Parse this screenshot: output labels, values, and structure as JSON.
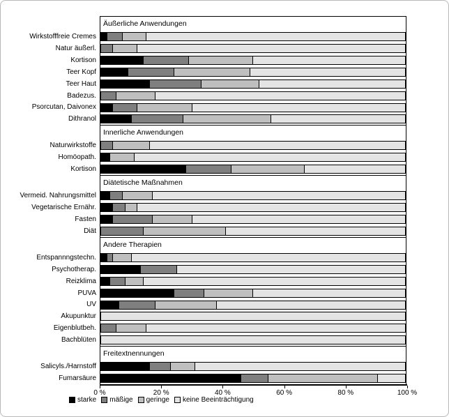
{
  "chart_data": {
    "type": "bar",
    "orientation": "horizontal",
    "stacked": true,
    "unit": "%",
    "x_axis": {
      "range": [
        0,
        100
      ],
      "ticks": [
        "0 %",
        "20 %",
        "40 %",
        "60 %",
        "80 %",
        "100 %"
      ]
    },
    "legend": {
      "position": "bottom",
      "entries": [
        {
          "key": "starke",
          "label": "starke",
          "color": "#000000"
        },
        {
          "key": "maessige",
          "label": "mäßige",
          "color": "#7f7f7f"
        },
        {
          "key": "geringe",
          "label": "geringe",
          "color": "#bfbfbf"
        },
        {
          "key": "keine",
          "label": "keine Beeinträchtigung",
          "color": "#e4e4e4"
        }
      ]
    },
    "series_names": [
      "starke",
      "mäßige",
      "geringe",
      "keine Beeinträchtigung"
    ],
    "groups": [
      {
        "header": "Äußerliche Anwendungen",
        "rows": [
          {
            "label": "Wirkstofffreie Cremes",
            "values": [
              2,
              5,
              8,
              85
            ]
          },
          {
            "label": "Natur äußerl.",
            "values": [
              0,
              4,
              8,
              88
            ]
          },
          {
            "label": "Kortison",
            "values": [
              14,
              15,
              21,
              50
            ]
          },
          {
            "label": "Teer Kopf",
            "values": [
              9,
              15,
              25,
              51
            ]
          },
          {
            "label": "Teer Haut",
            "values": [
              16,
              17,
              19,
              48
            ]
          },
          {
            "label": "Badezus.",
            "values": [
              0,
              5,
              13,
              82
            ]
          },
          {
            "label": "Psorcutan, Daivonex",
            "values": [
              4,
              8,
              18,
              70
            ]
          },
          {
            "label": "Dithranol",
            "values": [
              10,
              17,
              29,
              44
            ]
          }
        ]
      },
      {
        "header": "Innerliche Anwendungen",
        "rows": [
          {
            "label": "Naturwirkstoffe",
            "values": [
              0,
              4,
              12,
              84
            ]
          },
          {
            "label": "Homöopath.",
            "values": [
              3,
              0,
              8,
              89
            ]
          },
          {
            "label": "Kortison",
            "values": [
              28,
              15,
              24,
              33
            ]
          }
        ]
      },
      {
        "header": "Diätetische Maßnahmen",
        "rows": [
          {
            "label": "Vermeid. Nahrungsmittel",
            "values": [
              3,
              4,
              10,
              83
            ]
          },
          {
            "label": "Vegetarische Ernähr.",
            "values": [
              4,
              4,
              4,
              88
            ]
          },
          {
            "label": "Fasten",
            "values": [
              4,
              13,
              13,
              70
            ]
          },
          {
            "label": "Diät",
            "values": [
              0,
              14,
              27,
              59
            ]
          }
        ]
      },
      {
        "header": "Andere Therapien",
        "rows": [
          {
            "label": "Entspannngstechn.",
            "values": [
              2,
              2,
              6,
              90
            ]
          },
          {
            "label": "Psychotherap.",
            "values": [
              13,
              12,
              0,
              75
            ]
          },
          {
            "label": "Reizklima",
            "values": [
              3,
              5,
              6,
              86
            ]
          },
          {
            "label": "PUVA",
            "values": [
              24,
              10,
              16,
              50
            ]
          },
          {
            "label": "UV",
            "values": [
              6,
              12,
              20,
              62
            ]
          },
          {
            "label": "Akupunktur",
            "values": [
              0,
              0,
              0,
              100
            ]
          },
          {
            "label": "Eigenblutbeh.",
            "values": [
              0,
              5,
              10,
              85
            ]
          },
          {
            "label": "Bachblüten",
            "values": [
              0,
              0,
              0,
              100
            ]
          }
        ]
      },
      {
        "header": "Freitextnennungen",
        "rows": [
          {
            "label": "Salicyls./Harnstoff",
            "values": [
              16,
              7,
              8,
              69
            ]
          },
          {
            "label": "Fumarsäure",
            "values": [
              46,
              9,
              36,
              9
            ]
          }
        ]
      }
    ]
  }
}
